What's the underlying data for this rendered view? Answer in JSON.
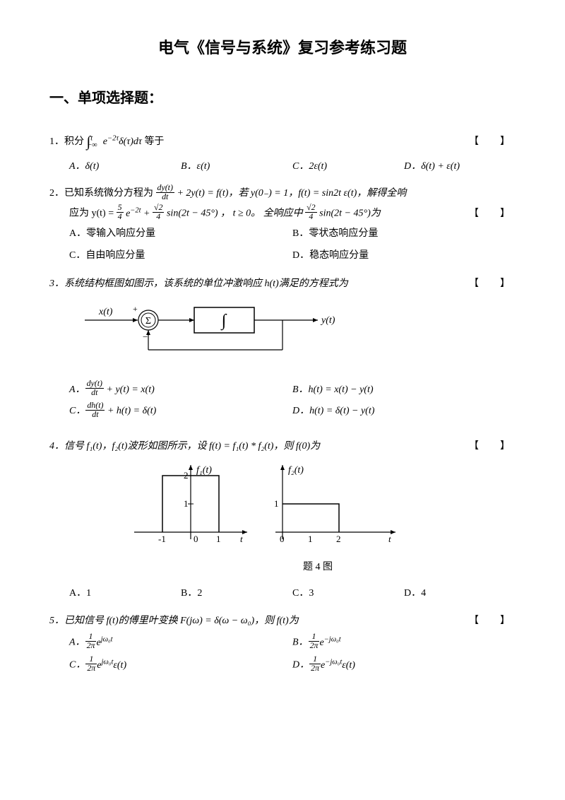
{
  "title": "电气《信号与系统》复习参考练习题",
  "section": "一、单项选择题：",
  "bracket": "【　】",
  "q1": {
    "stem_pre": "1．积分 ",
    "stem_post": " 等于",
    "int_lo": "−∞",
    "int_hi": "t",
    "integrand": "e<sup>−2τ</sup>δ(τ)dτ",
    "A": "A．δ(t)",
    "B": "B．ε(t)",
    "C": "C．2ε(t)",
    "D": "D．δ(t) + ε(t)"
  },
  "q2": {
    "line1_pre": "2．已知系统微分方程为 ",
    "eq1_num": "dy(t)",
    "eq1_den": "dt",
    "line1_mid": " + 2y(t) = f(t)，若 y(0₋) = 1，f(t) = sin2t ε(t)，解得全响",
    "line2_pre": "应为 y(t) = ",
    "c1_num": "5",
    "c1_den": "4",
    "line2_mid1": " e<sup>−2t</sup> + ",
    "c2_num": "√2",
    "c2_den": "4",
    "line2_mid2": "sin(2t − 45°) ， t ≥ 0。 全响应中",
    "c3_num": "√2",
    "c3_den": "4",
    "line2_post": "sin(2t − 45°)为",
    "A": "A．零输入响应分量",
    "B": "B．零状态响应分量",
    "C": "C．自由响应分量",
    "D": "D．稳态响应分量"
  },
  "q3": {
    "stem": "3．系统结构框图如图示，该系统的单位冲激响应 h(t)满足的方程式为",
    "A_pre": "A．",
    "A_num": "dy(t)",
    "A_den": "dt",
    "A_post": " + y(t) = x(t)",
    "B": "B．h(t) = x(t) − y(t)",
    "C_pre": "C．",
    "C_num": "dh(t)",
    "C_den": "dt",
    "C_post": " + h(t) = δ(t)",
    "D": "D．h(t) = δ(t) − y(t)",
    "diagram": {
      "x_label": "x(t)",
      "y_label": "y(t)",
      "sum": "Σ",
      "plus": "+",
      "minus": "−",
      "int_sym": "∫"
    }
  },
  "q4": {
    "stem": "4．信号 f₁(t)，f₂(t)波形如图所示，设 f(t) = f₁(t) * f₂(t)，则 f(0)为",
    "caption": "题 4 图",
    "A": "A．1",
    "B": "B．2",
    "C": "C．3",
    "D": "D．4",
    "plot1": {
      "label": "f₁(t)",
      "y_ticks": [
        "2",
        "1"
      ],
      "x_ticks": [
        "-1",
        "0",
        "1"
      ],
      "x_axis": "t",
      "x_range": [
        -1,
        1
      ],
      "y_height": 2
    },
    "plot2": {
      "label": "f₂(t)",
      "y_ticks": [
        "1"
      ],
      "x_ticks": [
        "0",
        "1",
        "2"
      ],
      "x_axis": "t",
      "x_range": [
        0,
        2
      ],
      "y_height": 1
    }
  },
  "q5": {
    "stem": "5．已知信号 f(t)的傅里叶变换 F(jω) = δ(ω − ω₀)，则 f(t)为",
    "A_pre": "A．",
    "A_num": "1",
    "A_den": "2π",
    "A_post": "e<sup>jω₀t</sup>",
    "B_pre": "B．",
    "B_num": "1",
    "B_den": "2π",
    "B_post": "e<sup>−jω₀t</sup>",
    "C_pre": "C．",
    "C_num": "1",
    "C_den": "2π",
    "C_post": "e<sup>jω₀t</sup>ε(t)",
    "D_pre": "D．",
    "D_num": "1",
    "D_den": "2π",
    "D_post": "e<sup>−jω₀t</sup>ε(t)"
  }
}
